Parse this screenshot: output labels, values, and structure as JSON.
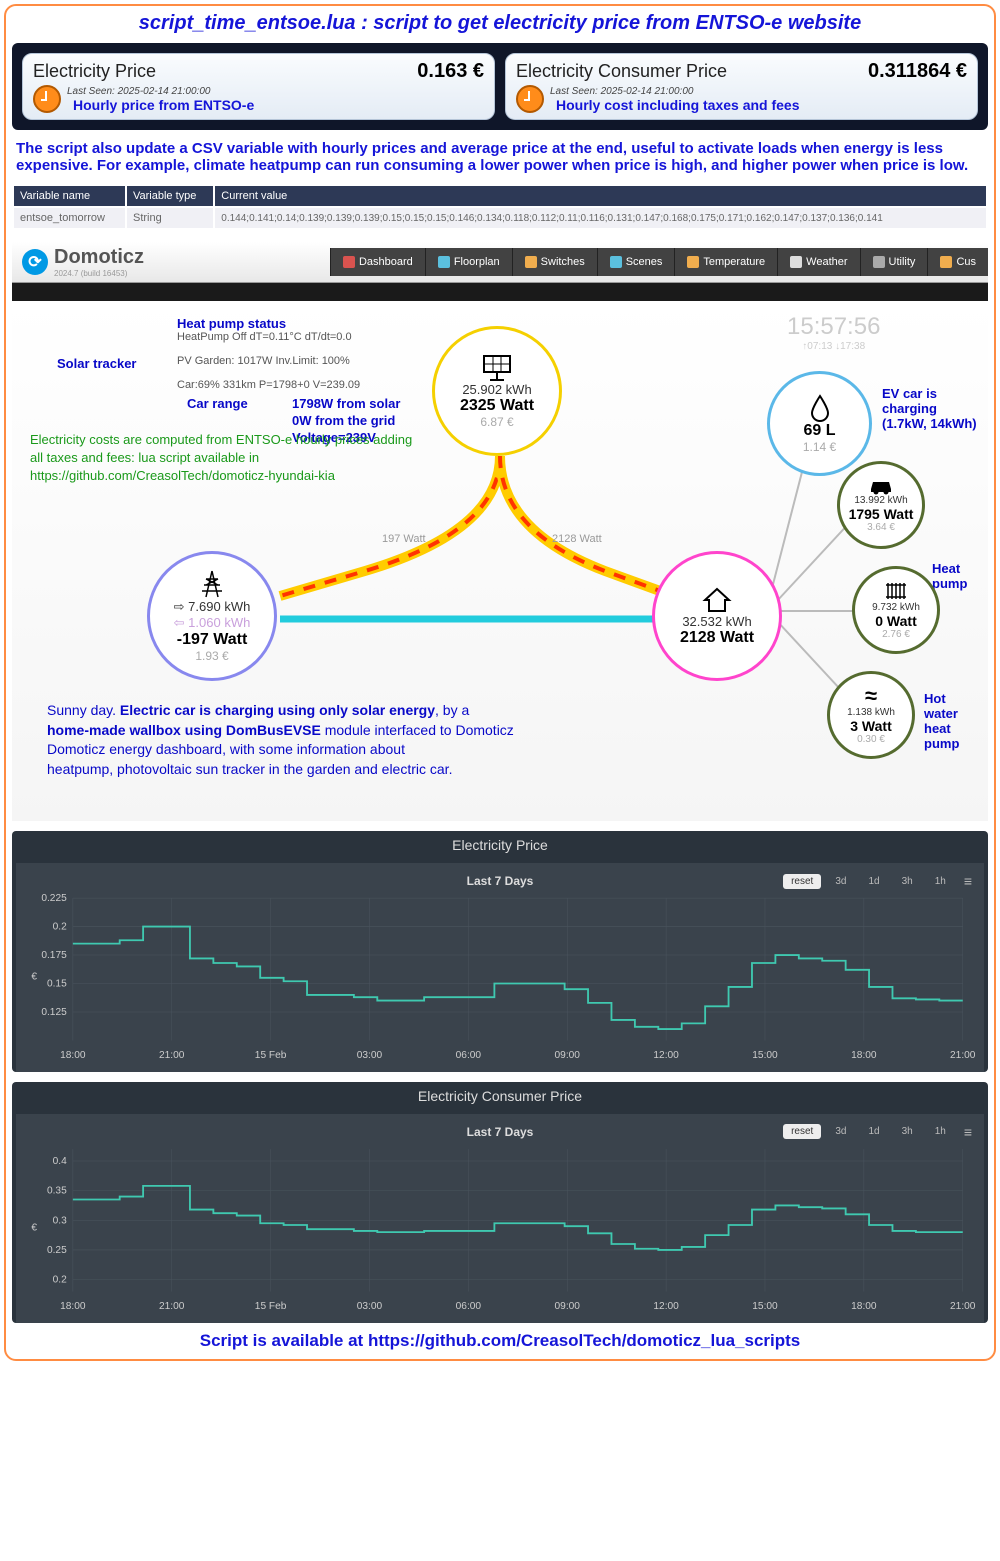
{
  "title": "script_time_entsoe.lua : script to get electricity price from ENTSO-e website",
  "widgets": {
    "price": {
      "title": "Electricity Price",
      "value": "0.163 €",
      "lastseen": "Last Seen: 2025-02-14 21:00:00",
      "sub": "Hourly price from ENTSO-e"
    },
    "consumer": {
      "title": "Electricity Consumer Price",
      "value": "0.311864 €",
      "lastseen": "Last Seen: 2025-02-14 21:00:00",
      "sub": "Hourly cost including taxes and fees"
    }
  },
  "desc": "The script also update a CSV variable with hourly prices and average price at the end, useful to activate loads when energy is less expensive. For example, climate heatpump can run consuming a lower power when price is high, and higher power when price is low.",
  "vartable": {
    "headers": [
      "Variable name",
      "Variable type",
      "Current value"
    ],
    "row": {
      "name": "entsoe_tomorrow",
      "type": "String",
      "value": "0.144;0.141;0.14;0.139;0.139;0.139;0.15;0.15;0.15;0.146;0.134;0.118;0.112;0.11;0.116;0.131;0.147;0.168;0.175;0.171;0.162;0.147;0.137;0.136;0.141"
    }
  },
  "domoticz": {
    "name": "Domoticz",
    "version": "2024.7 (build 16453)",
    "tabs": [
      "Dashboard",
      "Floorplan",
      "Switches",
      "Scenes",
      "Temperature",
      "Weather",
      "Utility",
      "Cus"
    ],
    "tab_colors": [
      "#d9534f",
      "#5bc0de",
      "#f0ad4e",
      "#5bc0de",
      "#f0ad4e",
      "#ddd",
      "#aaa",
      "#f0ad4e"
    ]
  },
  "dashboard": {
    "time": "15:57:56",
    "time_sub": "↑07:13 ↓17:38",
    "annotations": {
      "heatpump_title": "Heat pump status",
      "heatpump_detail": "HeatPump Off  dT=0.11°C dT/dt=0.0",
      "solartracker": "Solar tracker",
      "pv_detail": "PV Garden: 1017W Inv.Limit: 100%",
      "car_detail": "Car:69% 331km P=1798+0 V=239.09",
      "carrange": "Car range",
      "solar_lines": "1798W from solar\n0W from the grid\nVoltage=239V",
      "green_text": "Electricity costs are computed from ENTSO-e hourly prices adding\nall taxes and fees: lua script available in\nhttps://github.com/CreasolTech/domoticz-hyundai-kia",
      "ev_charging": "EV car is charging (1.7kW, 14kWh)",
      "heat_pump": "Heat pump",
      "hot_water": "Hot water heat pump"
    },
    "nodes": {
      "solar": {
        "kwh": "25.902 kWh",
        "watt": "2325 Watt",
        "eur": "6.87 €",
        "color": "#f5d000",
        "icon": "☀"
      },
      "grid": {
        "kwh_in": "⇨ 7.690 kWh",
        "kwh_out": "⇦ 1.060 kWh",
        "watt": "-197 Watt",
        "eur": "1.93 €",
        "color": "#8888ee",
        "icon": "⚡"
      },
      "home": {
        "kwh": "32.532 kWh",
        "watt": "2128 Watt",
        "color": "#ff44cc",
        "icon": "⌂"
      },
      "water": {
        "val": "69 L",
        "eur": "1.14 €",
        "color": "#5bb8e8",
        "icon": "💧"
      },
      "car": {
        "kwh": "13.992 kWh",
        "watt": "1795 Watt",
        "eur": "3.64 €",
        "color": "#556b2f",
        "icon": "🚗"
      },
      "heatpump": {
        "kwh": "9.732 kWh",
        "watt": "0 Watt",
        "eur": "2.76 €",
        "color": "#556b2f",
        "icon": "♨"
      },
      "hotwater": {
        "kwh": "1.138 kWh",
        "watt": "3 Watt",
        "eur": "0.30 €",
        "color": "#556b2f",
        "icon": "≈"
      }
    },
    "flow_labels": {
      "left": "197 Watt",
      "right": "2128 Watt"
    },
    "caption_parts": {
      "p1": "Sunny day. ",
      "p2": "Electric car is charging using only solar energy",
      "p3": ", by a",
      "p4": "home-made wallbox using DomBusEVSE",
      "p5": " module interfaced to Domoticz",
      "p6": "Domoticz energy dashboard, with some information about",
      "p7": "heatpump, photovoltaic sun tracker in the garden and electric car."
    }
  },
  "charts": {
    "period_label": "Last 7 Days",
    "buttons": [
      "reset",
      "3d",
      "1d",
      "3h",
      "1h"
    ],
    "xticks": [
      "18:00",
      "21:00",
      "15 Feb",
      "03:00",
      "06:00",
      "09:00",
      "12:00",
      "15:00",
      "18:00",
      "21:00"
    ],
    "price": {
      "title": "Electricity Price",
      "ylabel": "€",
      "ylim": [
        0.1,
        0.225
      ],
      "yticks": [
        0.125,
        0.15,
        0.175,
        0.2,
        0.225
      ],
      "line_color": "#3fc9b0",
      "grid_color": "#4a545e",
      "bg": "#3a434c",
      "data": [
        0.185,
        0.185,
        0.188,
        0.2,
        0.2,
        0.172,
        0.168,
        0.165,
        0.155,
        0.152,
        0.14,
        0.14,
        0.138,
        0.135,
        0.135,
        0.138,
        0.138,
        0.138,
        0.15,
        0.15,
        0.15,
        0.145,
        0.133,
        0.118,
        0.112,
        0.11,
        0.115,
        0.13,
        0.147,
        0.168,
        0.175,
        0.172,
        0.17,
        0.162,
        0.147,
        0.137,
        0.136,
        0.135,
        0.135
      ]
    },
    "consumer": {
      "title": "Electricity Consumer Price",
      "ylabel": "€",
      "ylim": [
        0.18,
        0.42
      ],
      "yticks": [
        0.2,
        0.25,
        0.3,
        0.35,
        0.4
      ],
      "line_color": "#3fc9b0",
      "grid_color": "#4a545e",
      "bg": "#3a434c",
      "data": [
        0.335,
        0.335,
        0.34,
        0.358,
        0.358,
        0.318,
        0.312,
        0.308,
        0.295,
        0.292,
        0.285,
        0.285,
        0.282,
        0.28,
        0.28,
        0.282,
        0.282,
        0.282,
        0.295,
        0.295,
        0.295,
        0.29,
        0.278,
        0.26,
        0.252,
        0.25,
        0.255,
        0.275,
        0.292,
        0.318,
        0.325,
        0.322,
        0.32,
        0.31,
        0.292,
        0.282,
        0.28,
        0.28,
        0.28
      ]
    }
  },
  "footer": "Script is available at https://github.com/CreasolTech/domoticz_lua_scripts"
}
